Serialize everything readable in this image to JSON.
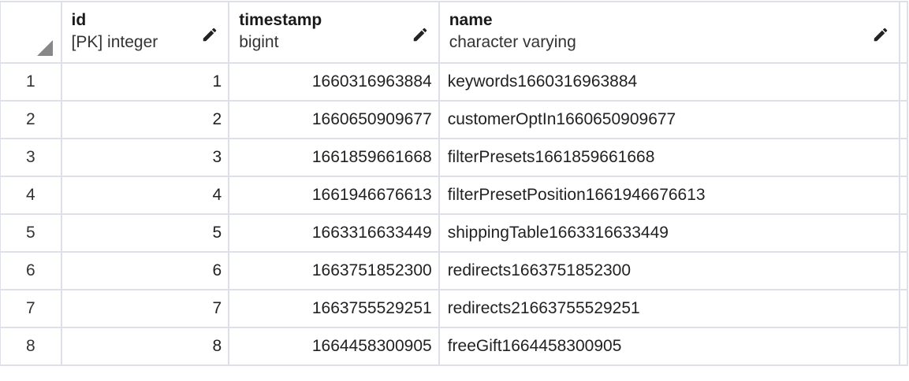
{
  "columns": [
    {
      "name": "id",
      "type": "[PK] integer"
    },
    {
      "name": "timestamp",
      "type": "bigint"
    },
    {
      "name": "name",
      "type": "character varying"
    }
  ],
  "rows": [
    {
      "row": "1",
      "id": "1",
      "timestamp": "1660316963884",
      "name": "keywords1660316963884"
    },
    {
      "row": "2",
      "id": "2",
      "timestamp": "1660650909677",
      "name": "customerOptIn1660650909677"
    },
    {
      "row": "3",
      "id": "3",
      "timestamp": "1661859661668",
      "name": "filterPresets1661859661668"
    },
    {
      "row": "4",
      "id": "4",
      "timestamp": "1661946676613",
      "name": "filterPresetPosition1661946676613"
    },
    {
      "row": "5",
      "id": "5",
      "timestamp": "1663316633449",
      "name": "shippingTable1663316633449"
    },
    {
      "row": "6",
      "id": "6",
      "timestamp": "1663751852300",
      "name": "redirects1663751852300"
    },
    {
      "row": "7",
      "id": "7",
      "timestamp": "1663755529251",
      "name": "redirects21663755529251"
    },
    {
      "row": "8",
      "id": "8",
      "timestamp": "1664458300905",
      "name": "freeGift1664458300905"
    }
  ]
}
